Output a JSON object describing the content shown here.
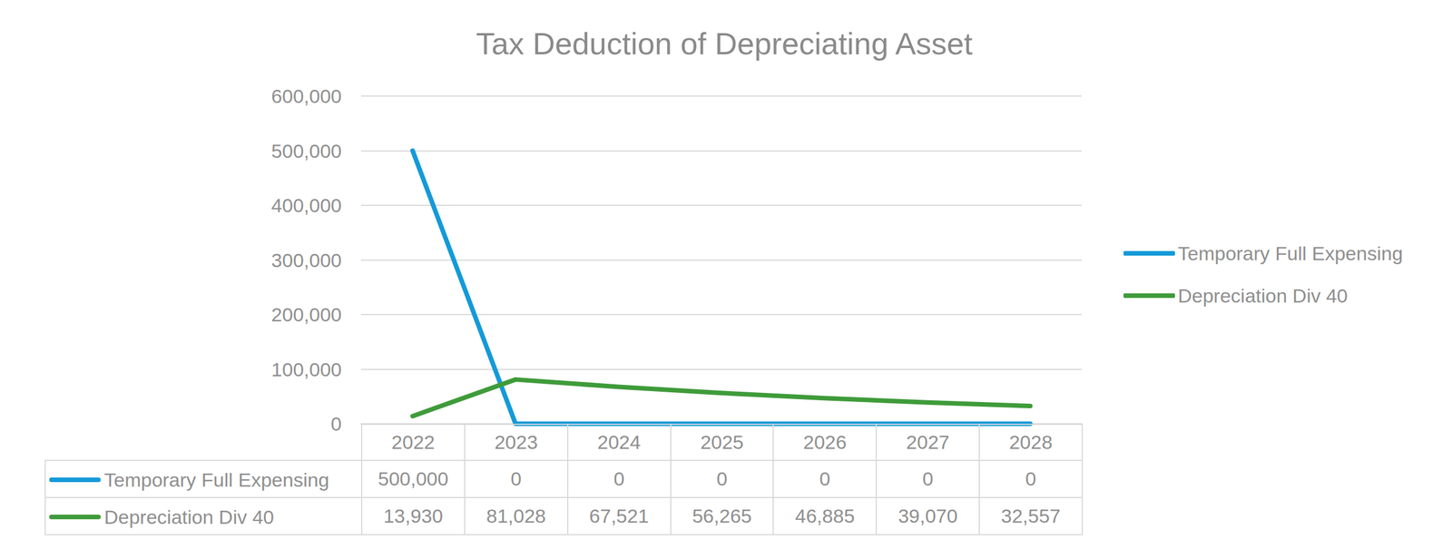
{
  "chart_data": {
    "type": "line",
    "title": "Tax Deduction of Depreciating Asset",
    "categories": [
      "2022",
      "2023",
      "2024",
      "2025",
      "2026",
      "2027",
      "2028"
    ],
    "series": [
      {
        "name": "Temporary Full Expensing",
        "color": "#149ad8",
        "values": [
          500000,
          0,
          0,
          0,
          0,
          0,
          0
        ],
        "value_labels": [
          "500,000",
          "0",
          "0",
          "0",
          "0",
          "0",
          "0"
        ]
      },
      {
        "name": "Depreciation Div 40",
        "color": "#3f9b3a",
        "values": [
          13930,
          81028,
          67521,
          56265,
          46885,
          39070,
          32557
        ],
        "value_labels": [
          "13,930",
          "81,028",
          "67,521",
          "56,265",
          "46,885",
          "39,070",
          "32,557"
        ]
      }
    ],
    "ylim": [
      0,
      600000
    ],
    "yticks": [
      0,
      {
        "value": 100000,
        "label": "100,000"
      },
      {
        "value": 200000,
        "label": "200,000"
      },
      {
        "value": 300000,
        "label": "300,000"
      },
      {
        "value": 400000,
        "label": "400,000"
      },
      {
        "value": 500000,
        "label": "500,000"
      },
      {
        "value": 600000,
        "label": "600,000"
      }
    ],
    "grid": true,
    "legend": "right"
  }
}
